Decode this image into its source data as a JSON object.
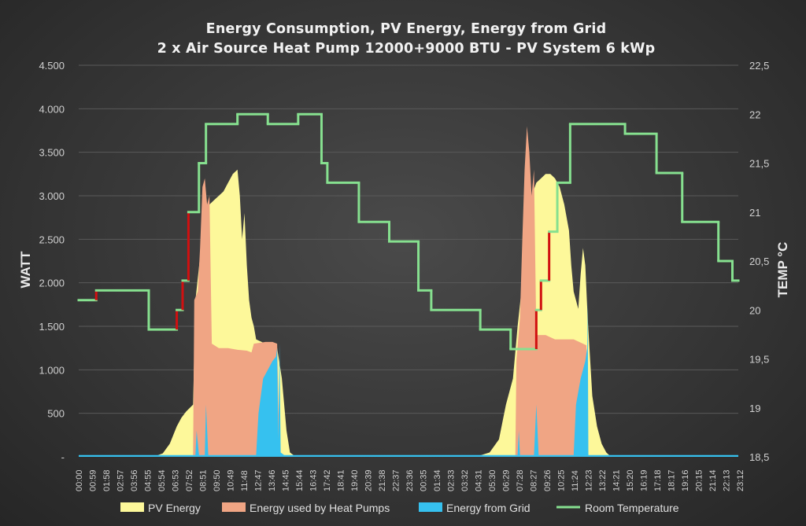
{
  "chart_data": {
    "type": "area",
    "title": "Energy Consumption, PV Energy, Energy from Grid",
    "subtitle": "2 x Air Source Heat Pump 12000+9000 BTU - PV System 6 kWp",
    "ylabel": "WATT",
    "y2label": "TEMP °C",
    "ylim": [
      0,
      4500
    ],
    "y2lim": [
      18.5,
      22.5
    ],
    "yticks": [
      0,
      500,
      1000,
      1500,
      2000,
      2500,
      3000,
      3500,
      4000,
      4500
    ],
    "ytick_labels": [
      "-",
      "500",
      "1.000",
      "1.500",
      "2.000",
      "2.500",
      "3.000",
      "3.500",
      "4.000",
      "4.500"
    ],
    "y2ticks": [
      18.5,
      19,
      19.5,
      20,
      20.5,
      21,
      21.5,
      22,
      22.5
    ],
    "y2tick_labels": [
      "18,5",
      "19",
      "19,5",
      "20",
      "20,5",
      "21",
      "21,5",
      "22",
      "22,5"
    ],
    "x_unit": "minutes since start (two consecutive days)",
    "xlim": [
      0,
      2880
    ],
    "xtick_labels": [
      "00:00",
      "00:59",
      "01:58",
      "02:57",
      "03:56",
      "04:55",
      "05:54",
      "06:53",
      "07:52",
      "08:51",
      "09:50",
      "10:49",
      "11:48",
      "12:47",
      "13:46",
      "14:45",
      "15:44",
      "16:43",
      "17:42",
      "18:41",
      "19:40",
      "20:39",
      "21:38",
      "22:37",
      "23:36",
      "00:35",
      "01:34",
      "02:33",
      "03:32",
      "04:31",
      "05:30",
      "06:29",
      "07:28",
      "08:27",
      "09:26",
      "10:25",
      "11:24",
      "12:23",
      "13:22",
      "14:21",
      "15:20",
      "16:19",
      "17:18",
      "18:17",
      "19:16",
      "20:15",
      "21:14",
      "22:13",
      "23:12"
    ],
    "xtick_step_minutes": 59,
    "grid": true,
    "legend_position": "bottom",
    "series": [
      {
        "name": "PV Energy",
        "type": "area",
        "color": "#fdf89a",
        "points": [
          [
            0,
            0
          ],
          [
            320,
            0
          ],
          [
            360,
            40
          ],
          [
            390,
            150
          ],
          [
            420,
            350
          ],
          [
            440,
            450
          ],
          [
            460,
            520
          ],
          [
            475,
            560
          ],
          [
            490,
            600
          ],
          [
            500,
            1800
          ],
          [
            520,
            2300
          ],
          [
            540,
            2700
          ],
          [
            560,
            2900
          ],
          [
            580,
            2950
          ],
          [
            600,
            3000
          ],
          [
            620,
            3050
          ],
          [
            640,
            3150
          ],
          [
            660,
            3250
          ],
          [
            680,
            3300
          ],
          [
            690,
            3000
          ],
          [
            700,
            2500
          ],
          [
            710,
            2800
          ],
          [
            720,
            2200
          ],
          [
            730,
            1800
          ],
          [
            740,
            1600
          ],
          [
            750,
            1500
          ],
          [
            760,
            1350
          ],
          [
            800,
            1300
          ],
          [
            830,
            1300
          ],
          [
            850,
            1250
          ],
          [
            870,
            900
          ],
          [
            890,
            300
          ],
          [
            905,
            50
          ],
          [
            930,
            0
          ],
          [
            1700,
            0
          ],
          [
            1760,
            50
          ],
          [
            1800,
            200
          ],
          [
            1830,
            600
          ],
          [
            1860,
            900
          ],
          [
            1880,
            1500
          ],
          [
            1900,
            2000
          ],
          [
            1920,
            2800
          ],
          [
            1940,
            3000
          ],
          [
            1960,
            3150
          ],
          [
            1980,
            3200
          ],
          [
            2000,
            3250
          ],
          [
            2020,
            3250
          ],
          [
            2040,
            3200
          ],
          [
            2060,
            3100
          ],
          [
            2080,
            2900
          ],
          [
            2100,
            2600
          ],
          [
            2110,
            2200
          ],
          [
            2120,
            1900
          ],
          [
            2140,
            1700
          ],
          [
            2150,
            2100
          ],
          [
            2160,
            2400
          ],
          [
            2170,
            2200
          ],
          [
            2180,
            1600
          ],
          [
            2200,
            700
          ],
          [
            2220,
            350
          ],
          [
            2240,
            150
          ],
          [
            2260,
            50
          ],
          [
            2280,
            0
          ],
          [
            2880,
            0
          ]
        ]
      },
      {
        "name": "Energy used by Heat Pumps",
        "type": "area",
        "color": "#f0a584",
        "points": [
          [
            0,
            0
          ],
          [
            490,
            0
          ],
          [
            495,
            1800
          ],
          [
            510,
            1900
          ],
          [
            520,
            2400
          ],
          [
            530,
            3100
          ],
          [
            540,
            3200
          ],
          [
            550,
            2900
          ],
          [
            560,
            3000
          ],
          [
            570,
            1300
          ],
          [
            600,
            1250
          ],
          [
            640,
            1250
          ],
          [
            680,
            1230
          ],
          [
            720,
            1220
          ],
          [
            740,
            1200
          ],
          [
            750,
            1300
          ],
          [
            800,
            1320
          ],
          [
            830,
            1320
          ],
          [
            850,
            1300
          ],
          [
            860,
            0
          ],
          [
            1870,
            0
          ],
          [
            1875,
            1100
          ],
          [
            1890,
            1600
          ],
          [
            1900,
            2500
          ],
          [
            1910,
            3300
          ],
          [
            1920,
            3800
          ],
          [
            1930,
            3500
          ],
          [
            1940,
            3000
          ],
          [
            1950,
            3300
          ],
          [
            1960,
            1400
          ],
          [
            2000,
            1400
          ],
          [
            2040,
            1350
          ],
          [
            2080,
            1350
          ],
          [
            2120,
            1350
          ],
          [
            2160,
            1300
          ],
          [
            2175,
            1280
          ],
          [
            2180,
            0
          ],
          [
            2880,
            0
          ]
        ]
      },
      {
        "name": "Energy from Grid",
        "type": "area",
        "color": "#36c1ef",
        "points": [
          [
            0,
            20
          ],
          [
            500,
            20
          ],
          [
            505,
            300
          ],
          [
            515,
            20
          ],
          [
            540,
            20
          ],
          [
            545,
            600
          ],
          [
            555,
            20
          ],
          [
            760,
            20
          ],
          [
            770,
            500
          ],
          [
            790,
            900
          ],
          [
            810,
            1000
          ],
          [
            830,
            1100
          ],
          [
            845,
            1150
          ],
          [
            850,
            1250
          ],
          [
            855,
            200
          ],
          [
            860,
            1300
          ],
          [
            865,
            50
          ],
          [
            880,
            20
          ],
          [
            1880,
            20
          ],
          [
            1885,
            300
          ],
          [
            1890,
            20
          ],
          [
            1950,
            20
          ],
          [
            1960,
            600
          ],
          [
            1970,
            20
          ],
          [
            2120,
            20
          ],
          [
            2130,
            600
          ],
          [
            2150,
            900
          ],
          [
            2170,
            1100
          ],
          [
            2178,
            1250
          ],
          [
            2180,
            1800
          ],
          [
            2183,
            20
          ],
          [
            2880,
            20
          ]
        ]
      },
      {
        "name": "Room Temperature",
        "type": "step-line",
        "color": "#86e08f",
        "rising_color": "#d01010",
        "points": [
          [
            0,
            20.1
          ],
          [
            75,
            20.2
          ],
          [
            300,
            19.8
          ],
          [
            420,
            20.0
          ],
          [
            445,
            20.3
          ],
          [
            470,
            21.0
          ],
          [
            515,
            21.5
          ],
          [
            545,
            21.9
          ],
          [
            680,
            22.0
          ],
          [
            810,
            21.9
          ],
          [
            940,
            22.0
          ],
          [
            1040,
            21.5
          ],
          [
            1065,
            21.3
          ],
          [
            1200,
            20.9
          ],
          [
            1330,
            20.7
          ],
          [
            1455,
            20.2
          ],
          [
            1510,
            20.0
          ],
          [
            1720,
            19.8
          ],
          [
            1850,
            19.6
          ],
          [
            1960,
            20.0
          ],
          [
            1980,
            20.3
          ],
          [
            2015,
            20.8
          ],
          [
            2050,
            21.3
          ],
          [
            2105,
            21.9
          ],
          [
            2340,
            21.8
          ],
          [
            2475,
            21.4
          ],
          [
            2585,
            20.9
          ],
          [
            2740,
            20.5
          ],
          [
            2800,
            20.3
          ],
          [
            3000,
            20.1
          ]
        ]
      }
    ]
  },
  "legend": [
    {
      "label": "PV Energy",
      "color": "#fdf89a",
      "kind": "swatch"
    },
    {
      "label": "Energy used by Heat Pumps",
      "color": "#f0a584",
      "kind": "swatch"
    },
    {
      "label": "Energy from Grid",
      "color": "#36c1ef",
      "kind": "swatch"
    },
    {
      "label": "Room Temperature",
      "color": "#86e08f",
      "kind": "line"
    }
  ]
}
